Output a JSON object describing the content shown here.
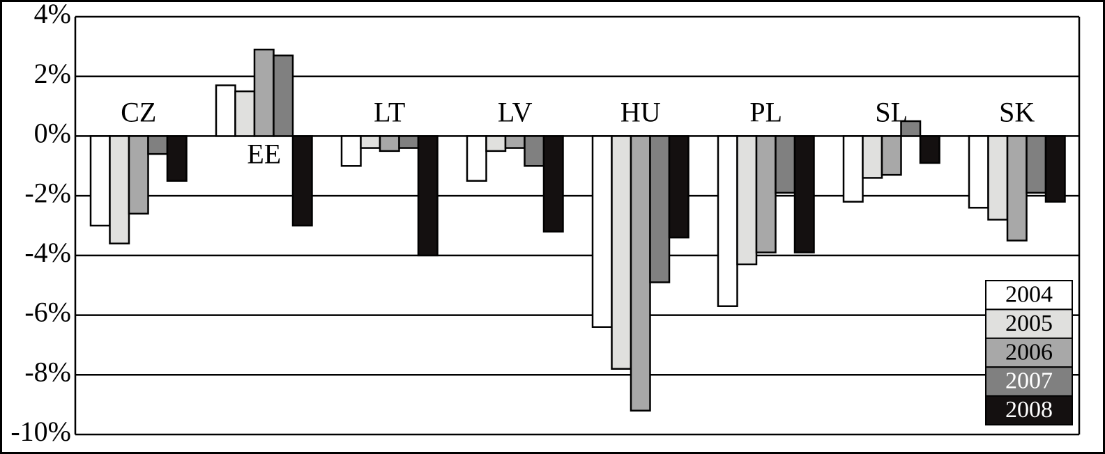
{
  "chart_data": {
    "type": "bar",
    "categories": [
      "CZ",
      "EE",
      "LT",
      "LV",
      "HU",
      "PL",
      "SL",
      "SK"
    ],
    "series": [
      {
        "name": "2004",
        "color": "#ffffff",
        "values": [
          -3.0,
          1.7,
          -1.0,
          -1.5,
          -6.4,
          -5.7,
          -2.2,
          -2.4
        ]
      },
      {
        "name": "2005",
        "color": "#e0e0de",
        "values": [
          -3.6,
          1.5,
          -0.4,
          -0.5,
          -7.8,
          -4.3,
          -1.4,
          -2.8
        ]
      },
      {
        "name": "2006",
        "color": "#a8a8a8",
        "values": [
          -2.6,
          2.9,
          -0.5,
          -0.4,
          -9.2,
          -3.9,
          -1.3,
          -3.5
        ]
      },
      {
        "name": "2007",
        "color": "#808080",
        "values": [
          -0.6,
          2.7,
          -0.4,
          -1.0,
          -4.9,
          -1.9,
          0.5,
          -1.9
        ]
      },
      {
        "name": "2008",
        "color": "#141010",
        "values": [
          -1.5,
          -3.0,
          -4.0,
          -3.2,
          -3.4,
          -3.9,
          -0.9,
          -2.2
        ]
      }
    ],
    "ylim": [
      -10,
      4
    ],
    "yticks": [
      {
        "value": -10,
        "label": "-10%"
      },
      {
        "value": -8,
        "label": "-8%"
      },
      {
        "value": -6,
        "label": "-6%"
      },
      {
        "value": -4,
        "label": "-4%"
      },
      {
        "value": -2,
        "label": "-2%"
      },
      {
        "value": 0,
        "label": "0%"
      },
      {
        "value": 2,
        "label": "2%"
      },
      {
        "value": 4,
        "label": "4%"
      }
    ],
    "grid": true,
    "legend": "lower right"
  }
}
